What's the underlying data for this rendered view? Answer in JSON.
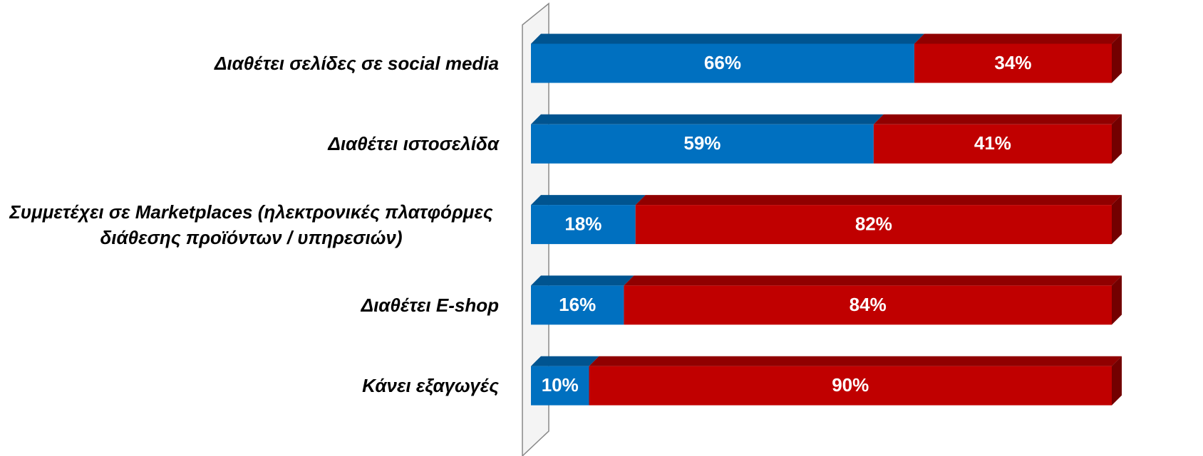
{
  "chart_data": {
    "type": "stacked_bar_horizontal",
    "categories": [
      "Διαθέτει σελίδες σε social media",
      "Διαθέτει ιστοσελίδα",
      "Συμμετέχει σε Marketplaces (ηλεκτρονικές πλατφόρμες διάθεσης προϊόντων / υπηρεσιών)",
      "Διαθέτει E-shop",
      "Κάνει εξαγωγές"
    ],
    "series": [
      {
        "color": "#0070c0",
        "values": [
          66,
          59,
          18,
          16,
          10
        ],
        "value_labels": [
          "66%",
          "59%",
          "18%",
          "16%",
          "10%"
        ]
      },
      {
        "color": "#c00000",
        "values": [
          34,
          41,
          82,
          84,
          90
        ],
        "value_labels": [
          "34%",
          "41%",
          "82%",
          "84%",
          "90%"
        ]
      }
    ],
    "xlim": [
      0,
      100
    ]
  }
}
